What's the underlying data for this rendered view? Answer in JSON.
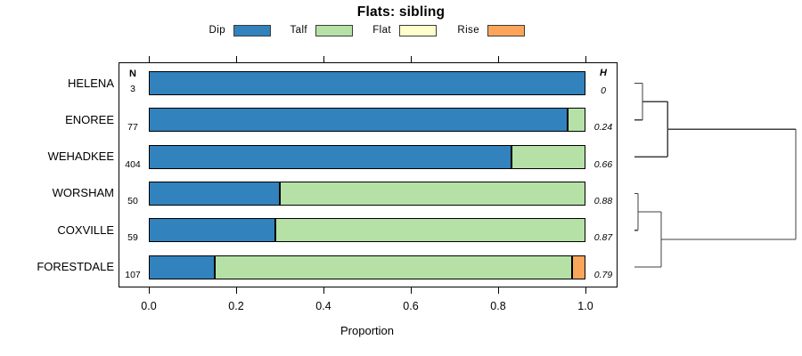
{
  "chart_data": {
    "type": "bar",
    "orientation": "horizontal",
    "stacked": true,
    "title": "Flats: sibling",
    "xlabel": "Proportion",
    "xlim": [
      0,
      1.07
    ],
    "x_ticks": [
      {
        "value": 0.0,
        "label": "0.0"
      },
      {
        "value": 0.2,
        "label": "0.2"
      },
      {
        "value": 0.4,
        "label": "0.4"
      },
      {
        "value": 0.6,
        "label": "0.6"
      },
      {
        "value": 0.8,
        "label": "0.8"
      },
      {
        "value": 1.0,
        "label": "1.0"
      }
    ],
    "grid": false,
    "legend_position": "top",
    "columns": {
      "n_header": "N",
      "h_header": "H"
    },
    "categories": [
      "HELENA",
      "ENOREE",
      "WEHADKEE",
      "WORSHAM",
      "COXVILLE",
      "FORESTDALE"
    ],
    "n_values": [
      "3",
      "77",
      "404",
      "50",
      "59",
      "107"
    ],
    "h_values": [
      "0",
      "0.24",
      "0.66",
      "0.88",
      "0.87",
      "0.79"
    ],
    "series": [
      {
        "name": "Dip",
        "color": "#3182BD",
        "values": [
          1.0,
          0.96,
          0.83,
          0.3,
          0.29,
          0.15
        ]
      },
      {
        "name": "Talf",
        "color": "#B5E1A6",
        "values": [
          0.0,
          0.04,
          0.17,
          0.7,
          0.71,
          0.82
        ]
      },
      {
        "name": "Flat",
        "color": "#FFFFCC",
        "values": [
          0.0,
          0.0,
          0.0,
          0.0,
          0.0,
          0.0
        ]
      },
      {
        "name": "Rise",
        "color": "#FAA55A",
        "values": [
          0.0,
          0.0,
          0.0,
          0.0,
          0.0,
          0.03
        ]
      }
    ],
    "dendrogram": {
      "leaf_order": [
        "HELENA",
        "ENOREE",
        "WEHADKEE",
        "WORSHAM",
        "COXVILLE",
        "FORESTDALE"
      ],
      "line_color": "#3f3f3f",
      "segments": [
        {
          "x1": 0,
          "y1": 0,
          "x2": 0.05,
          "y2": 0
        },
        {
          "x1": 0,
          "y1": 1,
          "x2": 0.05,
          "y2": 1
        },
        {
          "x1": 0.05,
          "y1": 0,
          "x2": 0.05,
          "y2": 1
        },
        {
          "x1": 0.05,
          "y1": 0.5,
          "x2": 0.205,
          "y2": 0.5
        },
        {
          "x1": 0,
          "y1": 2,
          "x2": 0.205,
          "y2": 2
        },
        {
          "x1": 0.205,
          "y1": 0.5,
          "x2": 0.205,
          "y2": 2
        },
        {
          "x1": 0.205,
          "y1": 1.25,
          "x2": 1,
          "y2": 1.25
        },
        {
          "x1": 0,
          "y1": 3,
          "x2": 0.022,
          "y2": 3
        },
        {
          "x1": 0,
          "y1": 4,
          "x2": 0.022,
          "y2": 4
        },
        {
          "x1": 0.022,
          "y1": 3,
          "x2": 0.022,
          "y2": 4
        },
        {
          "x1": 0.022,
          "y1": 3.5,
          "x2": 0.166,
          "y2": 3.5
        },
        {
          "x1": 0,
          "y1": 5,
          "x2": 0.166,
          "y2": 5
        },
        {
          "x1": 0.166,
          "y1": 3.5,
          "x2": 0.166,
          "y2": 5
        },
        {
          "x1": 0.166,
          "y1": 4.25,
          "x2": 1,
          "y2": 4.25
        },
        {
          "x1": 1,
          "y1": 1.25,
          "x2": 1,
          "y2": 4.25
        }
      ]
    }
  }
}
